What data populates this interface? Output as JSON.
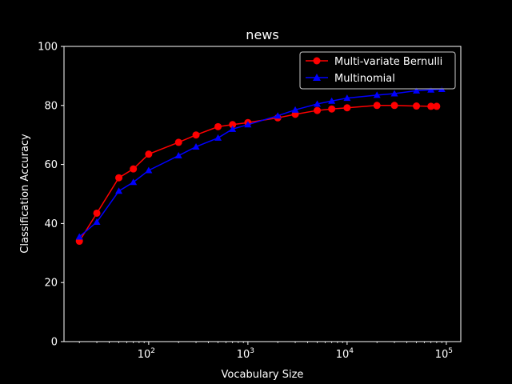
{
  "chart_data": {
    "type": "line",
    "title": "news",
    "xlabel": "Vocabulary Size",
    "ylabel": "Classification Accuracy",
    "xscale": "log",
    "xlim": [
      14,
      140000
    ],
    "ylim": [
      0,
      100
    ],
    "x_ticks": [
      {
        "value": 100,
        "base": "10",
        "exp": "2"
      },
      {
        "value": 1000,
        "base": "10",
        "exp": "3"
      },
      {
        "value": 10000,
        "base": "10",
        "exp": "4"
      },
      {
        "value": 100000,
        "base": "10",
        "exp": "5"
      }
    ],
    "y_ticks": [
      0,
      20,
      40,
      60,
      80,
      100
    ],
    "grid": false,
    "legend_position": "top-right",
    "background": "#000000",
    "foreground": "#ffffff",
    "series": [
      {
        "name": "Multi-variate Bernulli",
        "color": "#ff0000",
        "marker": "circle",
        "x": [
          20,
          30,
          50,
          70,
          100,
          200,
          300,
          500,
          700,
          1000,
          2000,
          3000,
          5000,
          7000,
          10000,
          20000,
          30000,
          50000,
          70000,
          80000
        ],
        "y": [
          34.0,
          43.5,
          55.5,
          58.5,
          63.5,
          67.5,
          70.0,
          72.8,
          73.5,
          74.2,
          75.8,
          77.0,
          78.3,
          78.8,
          79.2,
          80.0,
          80.0,
          79.8,
          79.7,
          79.7
        ]
      },
      {
        "name": "Multinomial",
        "color": "#0000ff",
        "marker": "triangle",
        "x": [
          20,
          30,
          50,
          70,
          100,
          200,
          300,
          500,
          700,
          1000,
          2000,
          3000,
          5000,
          7000,
          10000,
          20000,
          30000,
          50000,
          70000,
          90000
        ],
        "y": [
          35.5,
          40.5,
          51.0,
          54.0,
          58.0,
          63.0,
          66.0,
          69.0,
          72.0,
          73.5,
          76.5,
          78.5,
          80.5,
          81.5,
          82.5,
          83.5,
          84.0,
          85.0,
          85.3,
          85.5
        ]
      }
    ]
  }
}
